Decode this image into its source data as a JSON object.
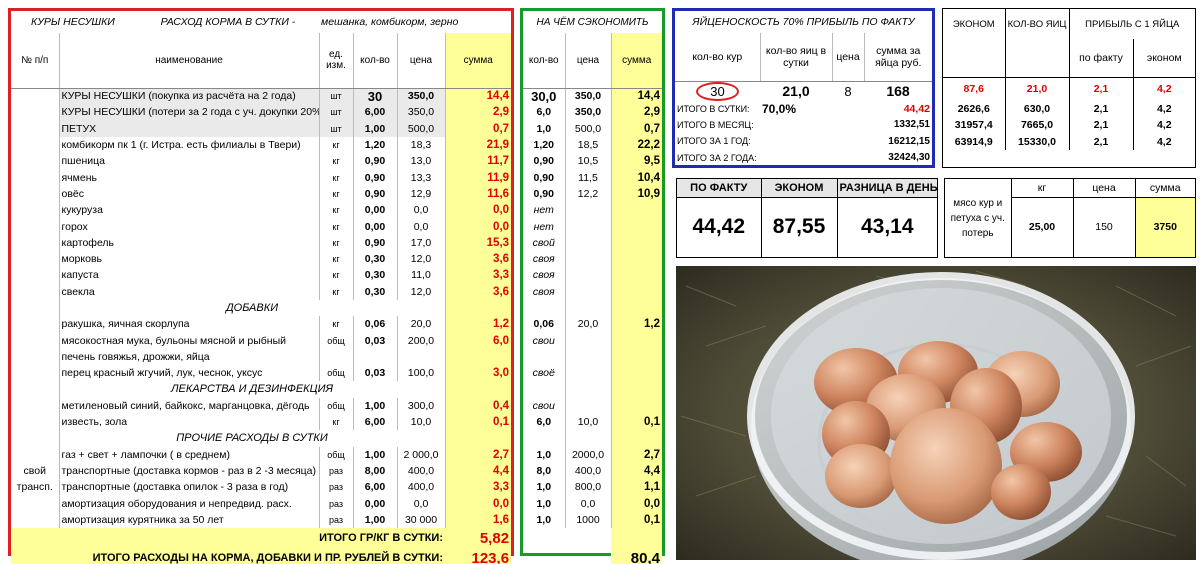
{
  "main": {
    "title_left": "КУРЫ  НЕСУШКИ",
    "title_right": "РАСХОД  КОРМА  В  СУТКИ -",
    "title_italic": "мешанка, комбикорм, зерно",
    "headers": {
      "num": "№ п/п",
      "name": "наименование",
      "unit": "ед. изм.",
      "qty": "кол-во",
      "price": "цена",
      "sum": "сумма"
    },
    "rows": [
      {
        "name": "КУРЫ НЕСУШКИ  (покупка из расчёта на 2 года)",
        "unit": "шт",
        "qty": "30",
        "price": "350,0",
        "sum": "14,4"
      },
      {
        "name": "КУРЫ НЕСУШКИ  (потери за 2 года с уч. докупки 20%)",
        "unit": "шт",
        "qty": "6,00",
        "price": "350,0",
        "sum": "2,9"
      },
      {
        "name": "ПЕТУХ",
        "unit": "шт",
        "qty": "1,00",
        "price": "500,0",
        "sum": "0,7"
      },
      {
        "name": "комбикорм пк 1 (г. Истра. есть филиалы в Твери)",
        "unit": "кг",
        "qty": "1,20",
        "price": "18,3",
        "sum": "21,9"
      },
      {
        "name": "пшеница",
        "unit": "кг",
        "qty": "0,90",
        "price": "13,0",
        "sum": "11,7"
      },
      {
        "name": "ячмень",
        "unit": "кг",
        "qty": "0,90",
        "price": "13,3",
        "sum": "11,9"
      },
      {
        "name": "овёс",
        "unit": "кг",
        "qty": "0,90",
        "price": "12,9",
        "sum": "11,6"
      },
      {
        "name": "кукуруза",
        "unit": "кг",
        "qty": "0,00",
        "price": "0,0",
        "sum": "0,0"
      },
      {
        "name": "горох",
        "unit": "кг",
        "qty": "0,00",
        "price": "0,0",
        "sum": "0,0"
      },
      {
        "name": "картофель",
        "unit": "кг",
        "qty": "0,90",
        "price": "17,0",
        "sum": "15,3"
      },
      {
        "name": "морковь",
        "unit": "кг",
        "qty": "0,30",
        "price": "12,0",
        "sum": "3,6"
      },
      {
        "name": "капуста",
        "unit": "кг",
        "qty": "0,30",
        "price": "11,0",
        "sum": "3,3"
      },
      {
        "name": "свекла",
        "unit": "кг",
        "qty": "0,30",
        "price": "12,0",
        "sum": "3,6"
      },
      {
        "section": "ДОБАВКИ"
      },
      {
        "name": "ракушка, яичная скорлупа",
        "unit": "кг",
        "qty": "0,06",
        "price": "20,0",
        "sum": "1,2"
      },
      {
        "name": "мясокостная мука, бульоны мясной и рыбный",
        "unit": "общ",
        "qty": "0,03",
        "price": "200,0",
        "sum": "6,0"
      },
      {
        "name": "печень говяжья, дрожжи, яйца",
        "unit": "",
        "qty": "",
        "price": "",
        "sum": ""
      },
      {
        "name": "перец красный жгучий, лук, чеснок, укcус",
        "unit": "общ",
        "qty": "0,03",
        "price": "100,0",
        "sum": "3,0"
      },
      {
        "section": "ЛЕКАРСТВА И ДЕЗИНФЕКЦИЯ"
      },
      {
        "name": "метиленовый синий, байкокс, марганцовка, дёгодь",
        "unit": "общ",
        "qty": "1,00",
        "price": "300,0",
        "sum": "0,4"
      },
      {
        "name": "известь, зола",
        "unit": "кг",
        "qty": "6,00",
        "price": "10,0",
        "sum": "0,1"
      },
      {
        "section": "ПРОЧИЕ РАСХОДЫ В СУТКИ"
      },
      {
        "name": "газ + свет + лампочки  ( в среднем)",
        "unit": "общ",
        "qty": "1,00",
        "price": "2 000,0",
        "sum": "2,7"
      },
      {
        "name": "транспортные (доставка кормов - раз в 2 -3 месяца)",
        "unit": "раз",
        "qty": "8,00",
        "price": "400,0",
        "sum": "4,4"
      },
      {
        "name": "транспортные (доставка опилок - 3 раза в год)",
        "unit": "раз",
        "qty": "6,00",
        "price": "400,0",
        "sum": "3,3"
      },
      {
        "name": "амортизация оборудования и непредвид. расх.",
        "unit": "раз",
        "qty": "0,00",
        "price": "0,0",
        "sum": "0,0"
      },
      {
        "name": "амортизация курятника за 50 лет",
        "unit": "раз",
        "qty": "1,00",
        "price": "30 000",
        "sum": "1,6"
      }
    ],
    "side_label_1": "свой",
    "side_label_2": "трансп.",
    "total1_label": "ИТОГО ГР/КГ В СУТКИ:",
    "total1_value": "5,82",
    "total2_label": "ИТОГО РАСХОДЫ НА КОРМА, ДОБАВКИ И ПР. РУБЛЕЙ В СУТКИ:",
    "total2_value": "123,6"
  },
  "save": {
    "title": "НА ЧЁМ СЭКОНОМИТЬ",
    "headers": {
      "qty": "кол-во",
      "price": "цена",
      "sum": "сумма"
    },
    "rows": [
      {
        "qty": "30,0",
        "price": "350,0",
        "sum": "14,4"
      },
      {
        "qty": "6,0",
        "price": "350,0",
        "sum": "2,9"
      },
      {
        "qty": "1,0",
        "price": "500,0",
        "sum": "0,7"
      },
      {
        "qty": "1,20",
        "price": "18,5",
        "sum": "22,2"
      },
      {
        "qty": "0,90",
        "price": "10,5",
        "sum": "9,5"
      },
      {
        "qty": "0,90",
        "price": "11,5",
        "sum": "10,4"
      },
      {
        "qty": "0,90",
        "price": "12,2",
        "sum": "10,9"
      },
      {
        "qty": "нет",
        "price": "",
        "sum": ""
      },
      {
        "qty": "нет",
        "price": "",
        "sum": ""
      },
      {
        "qty": "свой",
        "price": "",
        "sum": ""
      },
      {
        "qty": "своя",
        "price": "",
        "sum": ""
      },
      {
        "qty": "своя",
        "price": "",
        "sum": ""
      },
      {
        "qty": "своя",
        "price": "",
        "sum": ""
      },
      {
        "qty": "",
        "price": "",
        "sum": ""
      },
      {
        "qty": "0,06",
        "price": "20,0",
        "sum": "1,2"
      },
      {
        "qty": "свои",
        "price": "",
        "sum": ""
      },
      {
        "qty": "",
        "price": "",
        "sum": ""
      },
      {
        "qty": "своё",
        "price": "",
        "sum": ""
      },
      {
        "qty": "",
        "price": "",
        "sum": ""
      },
      {
        "qty": "свои",
        "price": "",
        "sum": ""
      },
      {
        "qty": "6,0",
        "price": "10,0",
        "sum": "0,1"
      },
      {
        "qty": "",
        "price": "",
        "sum": ""
      },
      {
        "qty": "1,0",
        "price": "2000,0",
        "sum": "2,7"
      },
      {
        "qty": "8,0",
        "price": "400,0",
        "sum": "4,4"
      },
      {
        "qty": "1,0",
        "price": "800,0",
        "sum": "1,1"
      },
      {
        "qty": "1,0",
        "price": "0,0",
        "sum": "0,0"
      },
      {
        "qty": "1,0",
        "price": "1000",
        "sum": "0,1"
      }
    ],
    "total": "80,4"
  },
  "yield": {
    "title": "ЯЙЦЕНОСКОСТЬ 70% ПРИБЫЛЬ ПО ФАКТУ",
    "headers": {
      "hens": "кол-во кур",
      "eggs": "кол-во яиц в сутки",
      "price": "цена",
      "sum": "сумма за яйца руб."
    },
    "hens": "30",
    "eggs": "21,0",
    "price": "8",
    "sum": "168",
    "day_label": "ИТОГО  В  СУТКИ:",
    "day_pct": "70,0%",
    "day_value": "44,42",
    "month_label": "ИТОГО   В МЕСЯЦ:",
    "month_value": "1332,51",
    "year_label": "ИТОГО   ЗА 1  ГОД:",
    "year_value": "16212,15",
    "two_label": "ИТОГО  ЗА 2 ГОДА:",
    "two_value": "32424,30"
  },
  "econ": {
    "headers": {
      "econ": "ЭКОНОМ",
      "eggs": "КОЛ-ВО ЯИЦ",
      "profit": "ПРИБЫЛЬ С 1 ЯЙЦА",
      "fact": "по факту",
      "eco": "эконом"
    },
    "rows": [
      {
        "econ": "87,6",
        "eggs": "21,0",
        "fact": "2,1",
        "eco": "4,2",
        "red": true
      },
      {
        "econ": "2626,6",
        "eggs": "630,0",
        "fact": "2,1",
        "eco": "4,2",
        "red": false
      },
      {
        "econ": "31957,4",
        "eggs": "7665,0",
        "fact": "2,1",
        "eco": "4,2",
        "red": false
      },
      {
        "econ": "63914,9",
        "eggs": "15330,0",
        "fact": "2,1",
        "eco": "4,2",
        "red": false
      }
    ]
  },
  "fact": {
    "headers": {
      "fact": "ПО ФАКТУ",
      "econ": "ЭКОНОМ",
      "diff": "РАЗНИЦА В ДЕНЬ"
    },
    "fact": "44,42",
    "econ": "87,55",
    "diff": "43,14"
  },
  "meat": {
    "label": "мясо кур и петуха с уч. потерь",
    "headers": {
      "kg": "кг",
      "price": "цена",
      "sum": "сумма"
    },
    "kg": "25,00",
    "price": "150",
    "sum": "3750"
  },
  "colors": {
    "red_box": "#e02020",
    "green_box": "#1a9a2a",
    "blue_box": "#1f2bb0",
    "highlight": "#ffff99",
    "red_text": "#e00000"
  }
}
